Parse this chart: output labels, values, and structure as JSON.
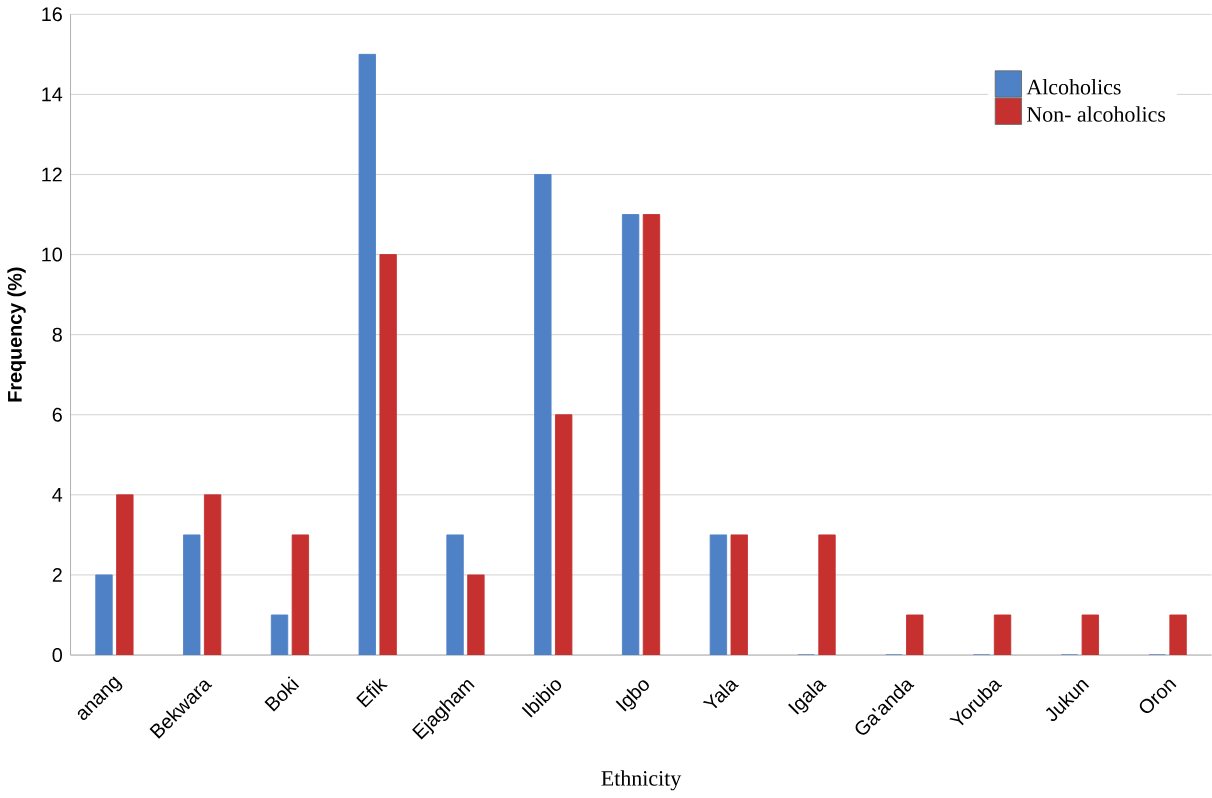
{
  "chart_data": {
    "type": "bar",
    "xlabel": "Ethnicity",
    "ylabel": "Frequency (%)",
    "categories": [
      "anang",
      "Bekwara",
      "Boki",
      "Efik",
      "Ejagham",
      "Ibibio",
      "Igbo",
      "Yala",
      "Igala",
      "Ga'anda",
      "Yoruba",
      "Jukun",
      "Oron"
    ],
    "series": [
      {
        "name": "Alcoholics",
        "color": "#4f81c7",
        "values": [
          2,
          3,
          1,
          15,
          3,
          12,
          11,
          3,
          0,
          0,
          0,
          0,
          0
        ]
      },
      {
        "name": "Non- alcoholics",
        "color": "#c6302f",
        "values": [
          4,
          4,
          3,
          10,
          2,
          6,
          11,
          3,
          3,
          1,
          1,
          1,
          1
        ]
      }
    ],
    "ylim": [
      0,
      16
    ],
    "yticks": [
      0,
      2,
      4,
      6,
      8,
      10,
      12,
      14,
      16
    ],
    "grid": "y",
    "legend": "top right"
  }
}
